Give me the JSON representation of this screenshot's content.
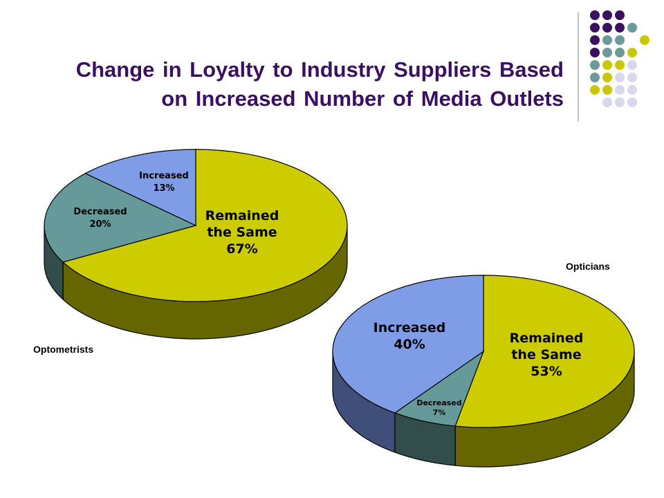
{
  "slide": {
    "title_line1": "Change in Loyalty to Industry Suppliers Based",
    "title_line2": "on Increased Number of Media Outlets"
  },
  "colors": {
    "title": "#3b1060",
    "dots": [
      "#3b1060",
      "#6a9a9a",
      "#c8c800",
      "#d8d8ec"
    ]
  },
  "chart_data": [
    {
      "type": "pie",
      "style": "3d",
      "title": "Optometrists",
      "slices": [
        {
          "label": "Remained the Same",
          "value": 67,
          "value_label": "67%",
          "color": "#cccc00",
          "side_color": "#666600"
        },
        {
          "label": "Decreased",
          "value": 20,
          "value_label": "20%",
          "color": "#669999",
          "side_color": "#334d4d"
        },
        {
          "label": "Increased",
          "value": 13,
          "value_label": "13%",
          "color": "#7f9de6",
          "side_color": "#3f4f7a"
        }
      ]
    },
    {
      "type": "pie",
      "style": "3d",
      "title": "Opticians",
      "slices": [
        {
          "label": "Remained the Same",
          "value": 53,
          "value_label": "53%",
          "color": "#cccc00",
          "side_color": "#666600"
        },
        {
          "label": "Decreased",
          "value": 7,
          "value_label": "7%",
          "color": "#669999",
          "side_color": "#334d4d"
        },
        {
          "label": "Increased",
          "value": 40,
          "value_label": "40%",
          "color": "#7f9de6",
          "side_color": "#3f4f7a"
        }
      ]
    }
  ]
}
